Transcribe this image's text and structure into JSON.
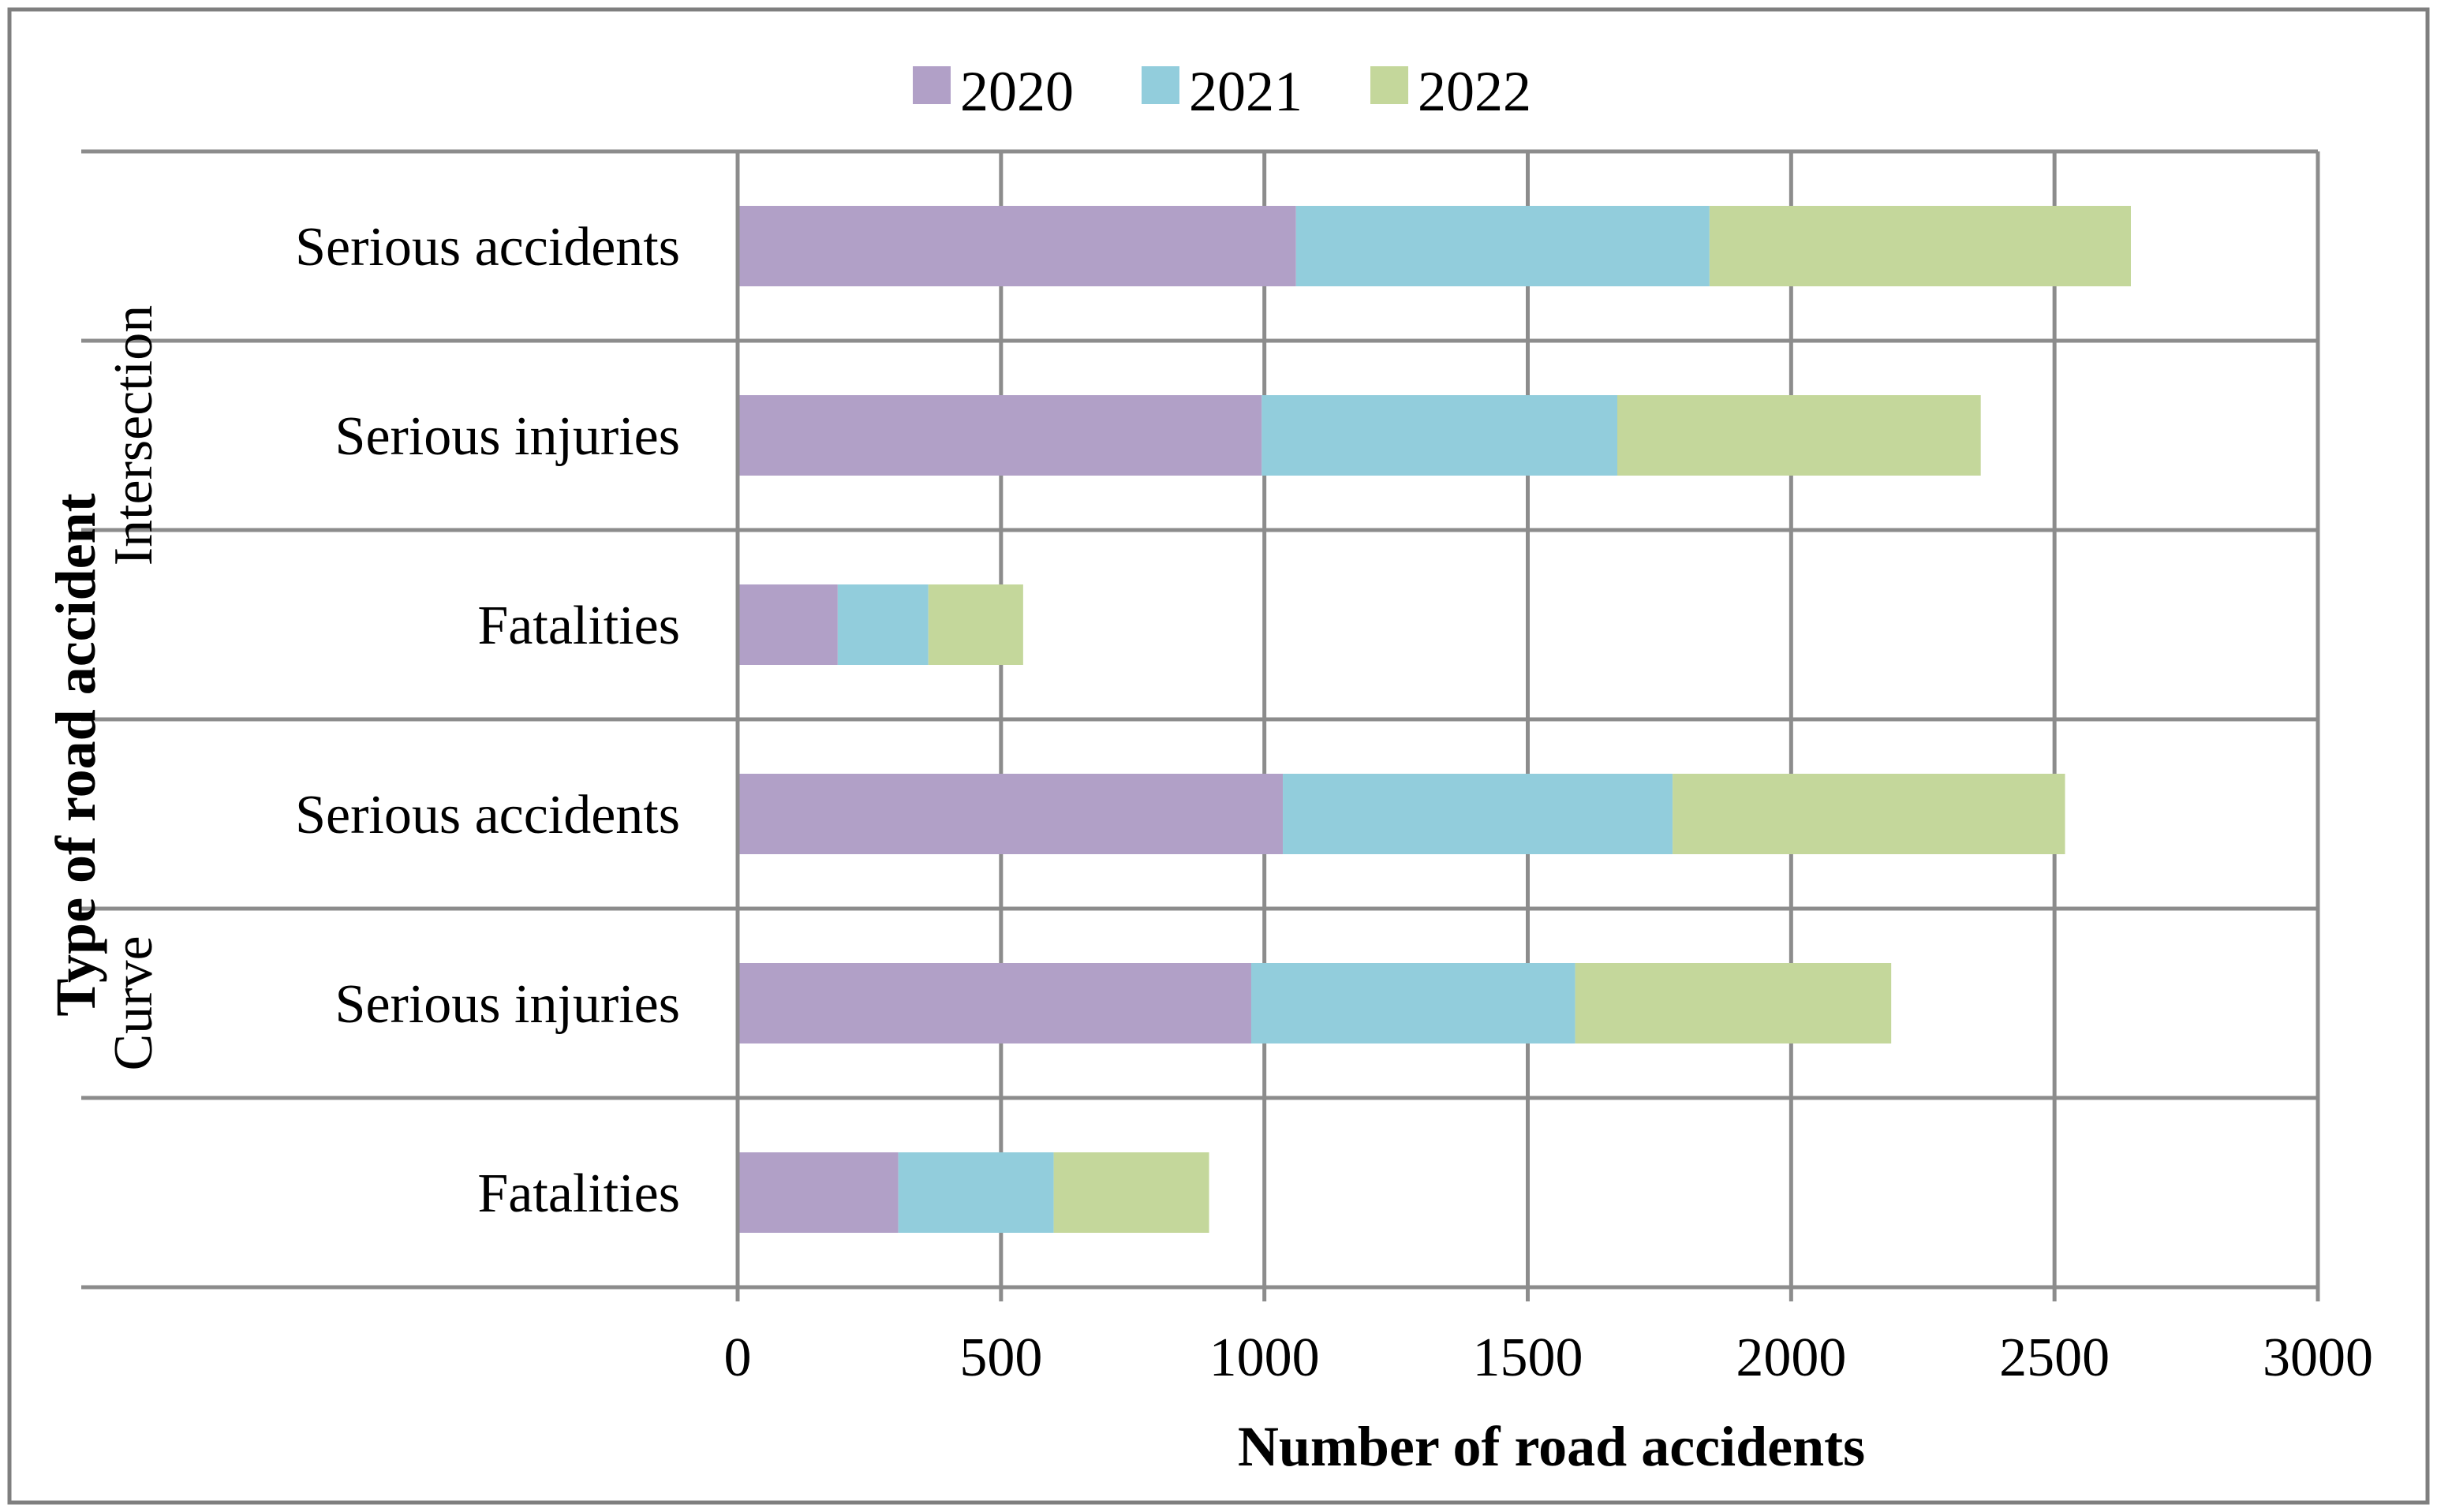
{
  "chart_data": {
    "type": "bar",
    "orientation": "horizontal",
    "stacked": true,
    "title": "",
    "xlabel": "Number of road accidents",
    "ylabel": "Type of road accident",
    "xlim": [
      0,
      3000
    ],
    "xticks": [
      0,
      500,
      1000,
      1500,
      2000,
      2500,
      3000
    ],
    "xtick_labels": [
      "0",
      "500",
      "1000",
      "1500",
      "2000",
      "2500",
      "3000"
    ],
    "grid": true,
    "legend_position": "top",
    "groups": [
      {
        "name": "Intersection",
        "categories": [
          "Serious accidents",
          "Serious injuries",
          "Fatalities"
        ]
      },
      {
        "name": "Curve",
        "categories": [
          "Serious accidents",
          "Serious injuries",
          "Fatalities"
        ]
      }
    ],
    "categories": [
      "Serious accidents",
      "Serious injuries",
      "Fatalities",
      "Serious accidents",
      "Serious injuries",
      "Fatalities"
    ],
    "series": [
      {
        "name": "2020",
        "color": "#b1a0c7",
        "values": [
          1060,
          995,
          190,
          1035,
          975,
          305
        ]
      },
      {
        "name": "2021",
        "color": "#92cddc",
        "values": [
          785,
          675,
          172,
          740,
          615,
          295
        ]
      },
      {
        "name": "2022",
        "color": "#c4d79b",
        "values": [
          800,
          690,
          180,
          745,
          600,
          295
        ]
      }
    ]
  }
}
